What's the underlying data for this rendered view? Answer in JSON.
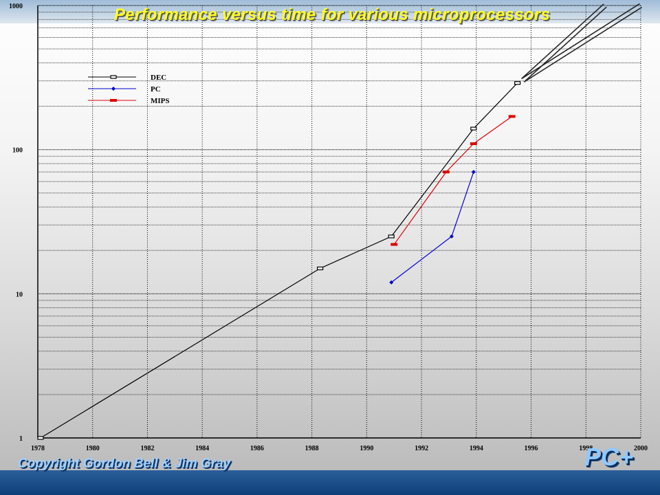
{
  "slide": {
    "title": "Performance versus time for various microprocessors",
    "copyright": "Copyright Gordon Bell & Jim Gray",
    "logo": "PC+"
  },
  "chart_data": {
    "type": "line",
    "title": "Performance versus time for various microprocessors",
    "xlabel": "",
    "ylabel": "",
    "xlim": [
      1978,
      2000
    ],
    "ylim": [
      1,
      1000
    ],
    "y_scale": "log",
    "grid": true,
    "legend_position": "top-left",
    "x_ticks": [
      "1978",
      "1980",
      "1982",
      "1984",
      "1986",
      "1988",
      "1990",
      "1992",
      "1994",
      "1996",
      "1998",
      "2000"
    ],
    "y_ticks": [
      "1",
      "10",
      "100",
      "1000"
    ],
    "series": [
      {
        "name": "DEC",
        "color": "#000000",
        "marker": "square-open",
        "points": [
          [
            1978.1,
            1
          ],
          [
            1988.3,
            15
          ],
          [
            1990.9,
            25
          ],
          [
            1993.9,
            140
          ],
          [
            1995.5,
            290
          ]
        ]
      },
      {
        "name": "PC",
        "color": "#0000cc",
        "marker": "diamond",
        "points": [
          [
            1990.9,
            12
          ],
          [
            1993.1,
            25
          ],
          [
            1993.9,
            70
          ]
        ]
      },
      {
        "name": "MIPS",
        "color": "#dd0000",
        "marker": "bar",
        "points": [
          [
            1991.0,
            22
          ],
          [
            1992.9,
            70
          ],
          [
            1993.9,
            110
          ],
          [
            1995.3,
            170
          ]
        ]
      }
    ],
    "annotations": [
      {
        "type": "extrapolation-arrow",
        "points": [
          [
            1995.5,
            290
          ],
          [
            1998.7,
            1000
          ]
        ]
      },
      {
        "type": "extrapolation-arrow",
        "points": [
          [
            1995.5,
            290
          ],
          [
            2000.0,
            1000
          ]
        ]
      }
    ]
  }
}
